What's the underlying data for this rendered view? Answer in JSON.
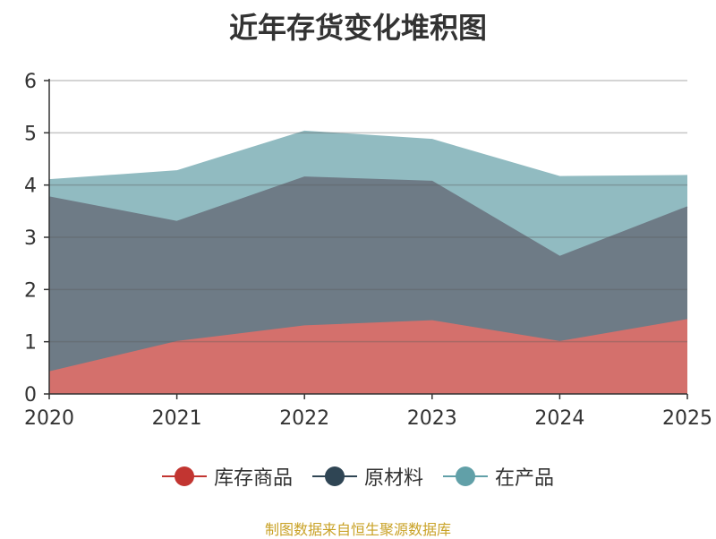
{
  "chart_data": {
    "type": "area",
    "stacked": true,
    "title": "近年存货变化堆积图",
    "x": [
      "2020",
      "2021",
      "2022",
      "2023",
      "2024",
      "2025"
    ],
    "ylim": [
      0,
      6
    ],
    "yticks": [
      "0",
      "1",
      "2",
      "3",
      "4",
      "5",
      "6"
    ],
    "grid": true,
    "legend_position": "bottom-center",
    "series": [
      {
        "name": "库存商品",
        "values": [
          0.42,
          1.0,
          1.3,
          1.4,
          1.0,
          1.42
        ],
        "color": "#c23531",
        "fill": "#d4706c"
      },
      {
        "name": "原材料",
        "values": [
          3.35,
          2.3,
          2.85,
          2.67,
          1.63,
          2.16
        ],
        "color": "#2f4554",
        "fill": "#6e7b86"
      },
      {
        "name": "在产品",
        "values": [
          0.33,
          0.97,
          0.88,
          0.8,
          1.53,
          0.6
        ],
        "color": "#61a0a8",
        "fill": "#91bbc1"
      }
    ]
  },
  "source_note": "制图数据来自恒生聚源数据库"
}
